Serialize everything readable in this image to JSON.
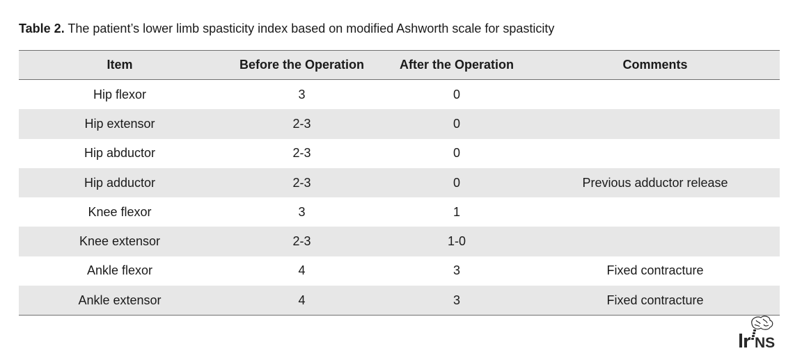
{
  "caption": {
    "label": "Table 2.",
    "text": " The patient’s lower limb spasticity index based on modified Ashworth scale for spasticity"
  },
  "table": {
    "headers": [
      "Item",
      "Before the Operation",
      "After the Operation",
      "Comments"
    ],
    "rows": [
      {
        "item": "Hip flexor",
        "before": "3",
        "after": "0",
        "comment": ""
      },
      {
        "item": "Hip extensor",
        "before": "2-3",
        "after": "0",
        "comment": ""
      },
      {
        "item": "Hip abductor",
        "before": "2-3",
        "after": "0",
        "comment": ""
      },
      {
        "item": "Hip adductor",
        "before": "2-3",
        "after": "0",
        "comment": "Previous adductor release"
      },
      {
        "item": "Knee flexor",
        "before": "3",
        "after": "1",
        "comment": ""
      },
      {
        "item": "Knee extensor",
        "before": "2-3",
        "after": "1-0",
        "comment": ""
      },
      {
        "item": "Ankle flexor",
        "before": "4",
        "after": "3",
        "comment": "Fixed contracture"
      },
      {
        "item": "Ankle extensor",
        "before": "4",
        "after": "3",
        "comment": "Fixed contracture"
      }
    ]
  },
  "logo": {
    "icon": "irjns-brain-logo-icon",
    "text": "IrJNS"
  },
  "colors": {
    "stripe": "#e7e7e7",
    "rule": "#6f6f6f",
    "text": "#1a1a1a"
  }
}
